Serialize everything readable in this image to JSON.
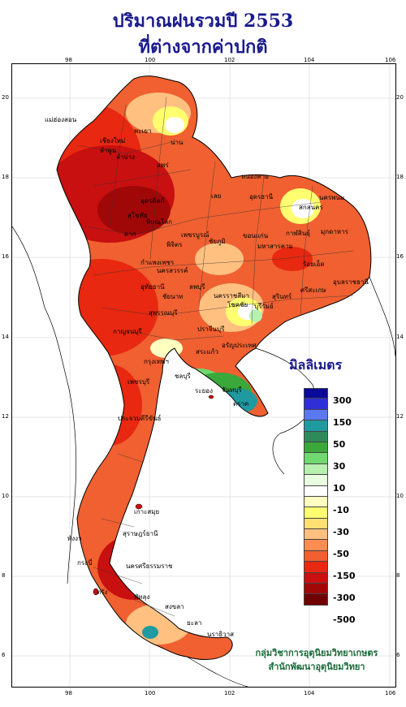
{
  "title_line1": "ปริมาณฝนรวมปี  2553",
  "title_line2": "ที่ต่างจากค่าปกติ",
  "legend": {
    "title": "มิลลิเมตร",
    "labels": [
      "300",
      "150",
      "50",
      "30",
      "10",
      "-10",
      "-30",
      "-50",
      "-150",
      "-300",
      "-500"
    ],
    "colors": [
      "#0a0a9a",
      "#2f2fd8",
      "#5a78f0",
      "#1e9aa0",
      "#2e8a5a",
      "#3aa83a",
      "#70d870",
      "#b8f0b0",
      "#e8ffe0",
      "#ffffff",
      "#ffffc0",
      "#ffff70",
      "#ffe070",
      "#ffc080",
      "#ff8c50",
      "#f06030",
      "#e82810",
      "#c81010",
      "#a00808",
      "#700000"
    ]
  },
  "axes": {
    "lon_ticks": [
      "98",
      "100",
      "102",
      "104",
      "106"
    ],
    "lat_ticks": [
      "20",
      "18",
      "16",
      "14",
      "12",
      "10",
      "8",
      "6"
    ]
  },
  "credit_line1": "กลุ่มวิชาการอุตุนิยมวิทยาเกษตร",
  "credit_line2": "สำนักพัฒนาอุตุนิยมวิทยา",
  "places": [
    "เชียงราย",
    "พะเยา",
    "น่าน",
    "เชียงใหม่",
    "ลำพูน",
    "ลำปาง",
    "แพร่",
    "อุตรดิตถ์",
    "สุโขทัย",
    "พิษณุโลก",
    "ตาก",
    "กำแพงเพชร",
    "พิจิตร",
    "เพชรบูรณ์",
    "หนองคาย",
    "อุดรธานี",
    "เลย",
    "สกลนคร",
    "นครพนม",
    "มุกดาหาร",
    "ขอนแก่น",
    "กาฬสินธุ์",
    "มหาสารคาม",
    "ร้อยเอ็ด",
    "ชัยภูมิ",
    "อุบลราชธานี",
    "ศรีสะเกษ",
    "สุรินทร์",
    "บุรีรัมย์",
    "นครราชสีมา",
    "โชคชัย",
    "นครสวรรค์",
    "อุทัยธานี",
    "ชัยนาท",
    "ลพบุรี",
    "กาญจนบุรี",
    "สุพรรณบุรี",
    "ปราจีนบุรี",
    "สระแก้ว",
    "ฉะเชิงเทรา",
    "ชลบุรี",
    "ระยอง",
    "จันทบุรี",
    "ตราด",
    "เพชรบุรี",
    "ประจวบคีรีขันธ์",
    "ชุมพร",
    "ระนอง",
    "เกาะสมุย",
    "สุราษฎร์ธานี",
    "กระบี่",
    "พังงา",
    "ภูเก็ต",
    "นครศรีธรรมราช",
    "ตรัง",
    "พัทลุง",
    "สงขลา",
    "ปัตตานี",
    "ยะลา",
    "นราธิวาส",
    "สตูล",
    "กรุงเทพฯ",
    "อรัญประเทศ",
    "แม่ฮ่องสอน"
  ]
}
